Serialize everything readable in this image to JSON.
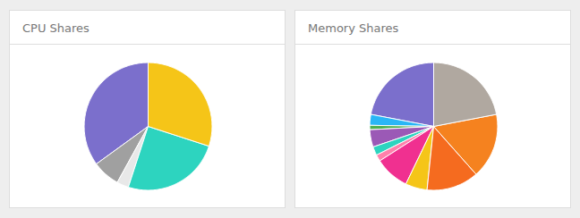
{
  "chart_data": [
    {
      "type": "pie",
      "title": "CPU Shares",
      "values": [
        0.35,
        0.07,
        0.03,
        0.25,
        0.3
      ],
      "colors": [
        "#7b6fcc",
        "#a0a0a0",
        "#e8e8e8",
        "#2dd4bf",
        "#f5c518"
      ]
    },
    {
      "type": "pie",
      "title": "Memory Shares",
      "values": [
        0.2,
        0.025,
        0.01,
        0.04,
        0.02,
        0.015,
        0.08,
        0.05,
        0.12,
        0.15,
        0.2
      ],
      "colors": [
        "#7b6fcc",
        "#29b6f6",
        "#4caf50",
        "#9b59b6",
        "#2dd4bf",
        "#ff80ab",
        "#f03090",
        "#f5c518",
        "#f56b1f",
        "#f5821f",
        "#b0a8a0"
      ]
    }
  ]
}
